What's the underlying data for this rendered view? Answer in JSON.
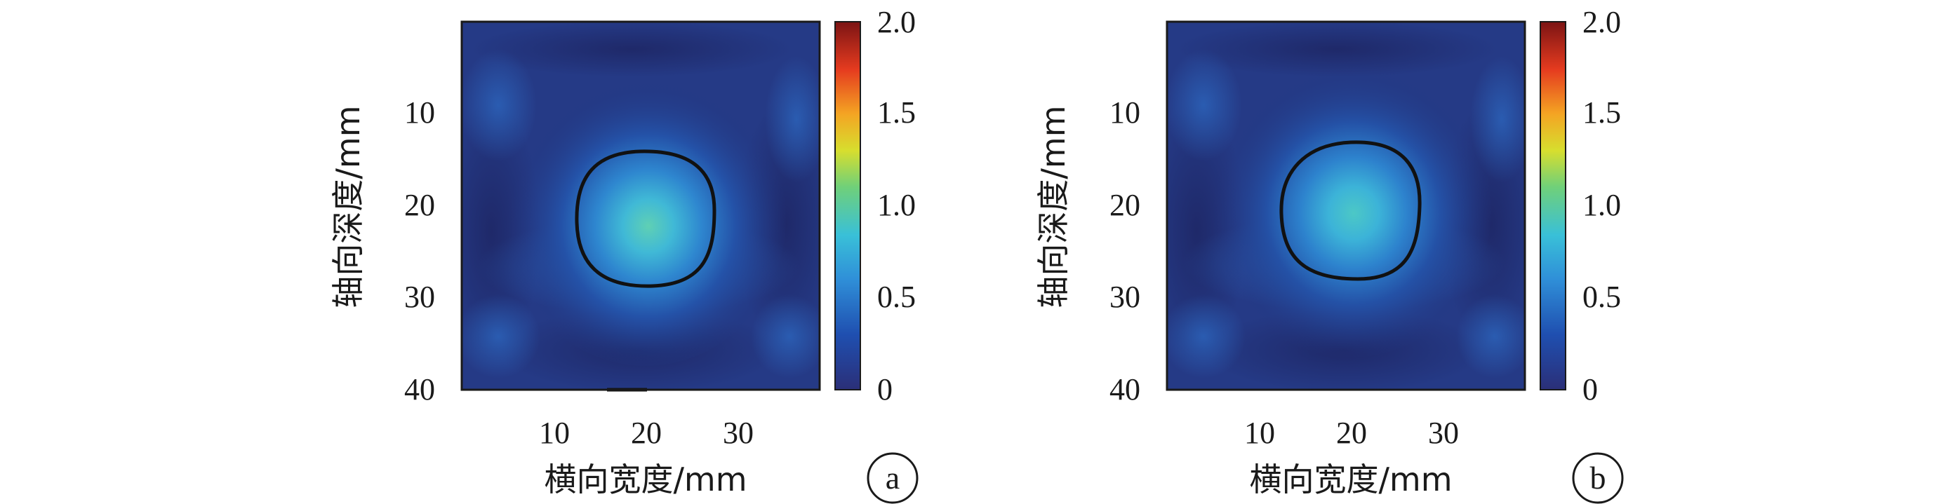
{
  "chart_data": [
    {
      "type": "heatmap",
      "panel_label": "a",
      "xlabel": "横向宽度/mm",
      "ylabel": "轴向深度/mm",
      "x_ticks": [
        "10",
        "20",
        "30"
      ],
      "y_ticks": [
        "10",
        "20",
        "30",
        "40"
      ],
      "xlim": [
        0,
        39
      ],
      "ylim": [
        0,
        40
      ],
      "colorbar": {
        "ticks": [
          "0",
          "0.5",
          "1.0",
          "1.5",
          "2.0"
        ],
        "range": [
          0,
          2.0
        ]
      },
      "inclusion": {
        "center_x_mm": 20.0,
        "center_y_mm": 21.0,
        "peak_value": 0.85,
        "contour_radius_x_mm": 7.2,
        "contour_radius_y_mm": 7.3
      },
      "background_value": 0.15,
      "colors": {
        "low": "#1f2d6b",
        "mid": "#3fb6d6",
        "high": "#8b1414"
      }
    },
    {
      "type": "heatmap",
      "panel_label": "b",
      "xlabel": "横向宽度/mm",
      "ylabel": "轴向深度/mm",
      "x_ticks": [
        "10",
        "20",
        "30"
      ],
      "y_ticks": [
        "10",
        "20",
        "30",
        "40"
      ],
      "xlim": [
        0,
        39
      ],
      "ylim": [
        0,
        40
      ],
      "colorbar": {
        "ticks": [
          "0",
          "0.5",
          "1.0",
          "1.5",
          "2.0"
        ],
        "range": [
          0,
          2.0
        ]
      },
      "inclusion": {
        "center_x_mm": 20.0,
        "center_y_mm": 20.5,
        "peak_value": 0.75,
        "contour_radius_x_mm": 7.3,
        "contour_radius_y_mm": 7.6
      },
      "background_value": 0.15,
      "colors": {
        "low": "#1f2d6b",
        "mid": "#3fb6d6",
        "high": "#8b1414"
      }
    }
  ]
}
